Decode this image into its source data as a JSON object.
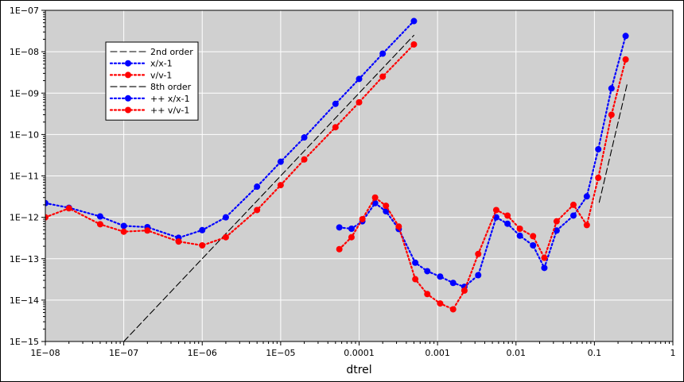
{
  "chart_data": {
    "type": "line",
    "title": "",
    "xlabel": "dtrel",
    "ylabel": "",
    "xscale": "log",
    "yscale": "log",
    "xlim": [
      1e-08,
      1
    ],
    "ylim": [
      1e-15,
      1e-07
    ],
    "grid": true,
    "legend_position": "upper-left",
    "background_color": "#d0d0d0",
    "grid_color": "#ffffff",
    "x_tick_labels": [
      "1E−08",
      "1E−07",
      "1E−06",
      "1E−05",
      "0.0001",
      "0.001",
      "0.01",
      "0.1",
      "1"
    ],
    "y_tick_labels": [
      "1E−15",
      "1E−14",
      "1E−13",
      "1E−12",
      "1E−11",
      "1E−10",
      "1E−09",
      "1E−08",
      "1E−07"
    ],
    "series": [
      {
        "name": "2nd order",
        "style": "dashed",
        "color": "#000000",
        "marker": "none",
        "x": [
          1e-07,
          0.0005
        ],
        "y": [
          1e-15,
          2.5e-08
        ]
      },
      {
        "name": "x/x-1",
        "style": "dotted",
        "color": "#0000ff",
        "marker": "circle",
        "x": [
          1e-08,
          2e-08,
          5e-08,
          1e-07,
          2e-07,
          5e-07,
          1e-06,
          2e-06,
          5e-06,
          1e-05,
          2e-05,
          5e-05,
          0.0001,
          0.0002,
          0.0005
        ],
        "y": [
          2.2e-12,
          1.7e-12,
          1.05e-12,
          6.2e-13,
          5.8e-13,
          3.2e-13,
          4.9e-13,
          1e-12,
          5.5e-12,
          2.2e-11,
          8.5e-11,
          5.5e-10,
          2.2e-09,
          9e-09,
          5.5e-08
        ]
      },
      {
        "name": "v/v-1",
        "style": "dotted",
        "color": "#ff0000",
        "marker": "circle",
        "x": [
          1e-08,
          2e-08,
          5e-08,
          1e-07,
          2e-07,
          5e-07,
          1e-06,
          2e-06,
          5e-06,
          1e-05,
          2e-05,
          5e-05,
          0.0001,
          0.0002,
          0.0005
        ],
        "y": [
          1e-12,
          1.65e-12,
          6.8e-13,
          4.5e-13,
          4.8e-13,
          2.6e-13,
          2.1e-13,
          3.3e-13,
          1.5e-12,
          6e-12,
          2.5e-11,
          1.5e-10,
          6e-10,
          2.5e-09,
          1.5e-08
        ]
      },
      {
        "name": "8th order",
        "style": "dashed",
        "color": "#000000",
        "marker": "none",
        "x": [
          0.115,
          0.26
        ],
        "y": [
          2.3e-12,
          1.6e-09
        ]
      },
      {
        "name": "++ x/x-1",
        "style": "dotted",
        "color": "#0000ff",
        "marker": "circle",
        "x": [
          5.6e-05,
          8e-05,
          0.00011,
          0.00016,
          0.00022,
          0.00032,
          0.00052,
          0.00074,
          0.00108,
          0.00158,
          0.0022,
          0.0033,
          0.0056,
          0.0078,
          0.0112,
          0.0165,
          0.023,
          0.033,
          0.054,
          0.08,
          0.112,
          0.165,
          0.25
        ],
        "y": [
          5.7e-13,
          5.3e-13,
          8e-13,
          2.2e-12,
          1.4e-12,
          5.2e-13,
          8e-14,
          5e-14,
          3.7e-14,
          2.6e-14,
          2.1e-14,
          4e-14,
          1e-12,
          7e-13,
          3.6e-13,
          2.1e-13,
          6e-14,
          4.8e-13,
          1.1e-12,
          3.2e-12,
          4.4e-11,
          1.3e-09,
          2.4e-08
        ]
      },
      {
        "name": "++ v/v-1",
        "style": "dotted",
        "color": "#ff0000",
        "marker": "circle",
        "x": [
          5.6e-05,
          8e-05,
          0.00011,
          0.00016,
          0.00022,
          0.00032,
          0.00052,
          0.00074,
          0.00108,
          0.00158,
          0.0022,
          0.0033,
          0.0056,
          0.0078,
          0.0112,
          0.0165,
          0.023,
          0.033,
          0.054,
          0.08,
          0.112,
          0.165,
          0.25
        ],
        "y": [
          1.7e-13,
          3.3e-13,
          9e-13,
          3e-12,
          1.9e-12,
          6e-13,
          3.2e-14,
          1.4e-14,
          8.3e-15,
          6e-15,
          1.7e-14,
          1.3e-13,
          1.5e-12,
          1.1e-12,
          5.3e-13,
          3.5e-13,
          1.05e-13,
          8e-13,
          2e-12,
          6.5e-13,
          9e-12,
          3e-10,
          6.5e-09
        ]
      }
    ]
  }
}
